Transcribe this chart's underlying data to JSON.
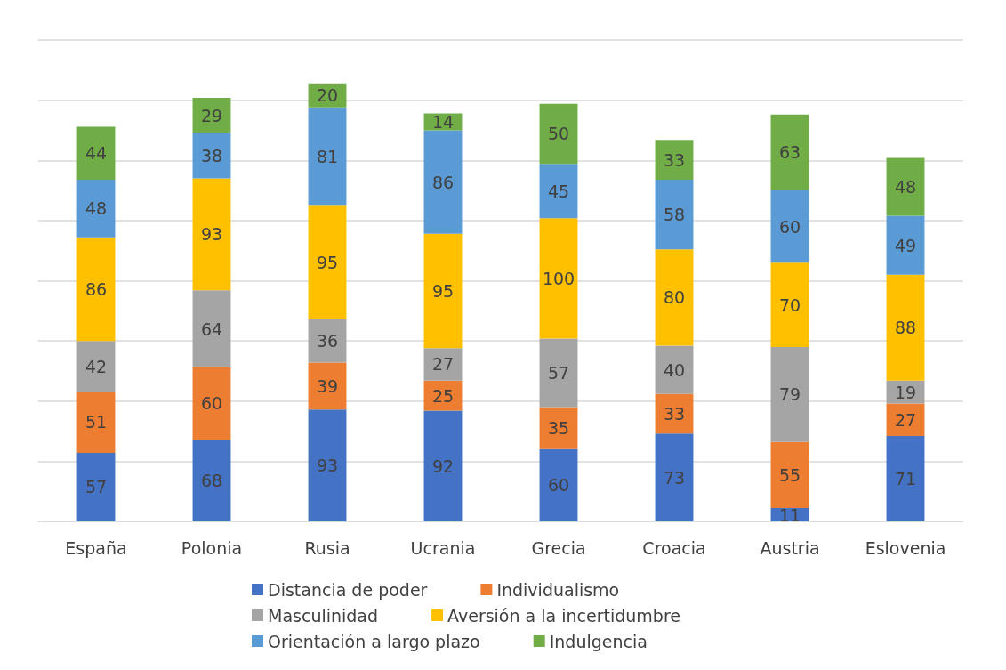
{
  "chart_data": {
    "type": "bar",
    "stacked": true,
    "data_labels": true,
    "grid": "y",
    "legend": "bottom",
    "tick_labels": "x",
    "categories": [
      "España",
      "Polonia",
      "Rusia",
      "Ucrania",
      "Grecia",
      "Croacia",
      "Austria",
      "Eslovenia"
    ],
    "ylim": [
      0,
      400
    ],
    "yticks": [
      {
        "value": 0,
        "label": null
      },
      {
        "value": 50,
        "label": null
      },
      {
        "value": 100,
        "label": null
      },
      {
        "value": 150,
        "label": null
      },
      {
        "value": 200,
        "label": null
      },
      {
        "value": 250,
        "label": null
      },
      {
        "value": 300,
        "label": null
      },
      {
        "value": 350,
        "label": null
      },
      {
        "value": 400,
        "label": null
      }
    ],
    "series": [
      {
        "name": "Distancia de poder",
        "color": "#4472c4",
        "values": [
          57,
          68,
          93,
          92,
          60,
          73,
          11,
          71
        ]
      },
      {
        "name": "Individualismo",
        "color": "#ed7d31",
        "values": [
          51,
          60,
          39,
          25,
          35,
          33,
          55,
          27
        ]
      },
      {
        "name": "Masculinidad",
        "color": "#a5a5a5",
        "values": [
          42,
          64,
          36,
          27,
          57,
          40,
          79,
          19
        ]
      },
      {
        "name": "Aversión a la incertidumbre",
        "color": "#ffc000",
        "values": [
          86,
          93,
          95,
          95,
          100,
          80,
          70,
          88
        ]
      },
      {
        "name": "Orientación a largo plazo",
        "color": "#5b9bd5",
        "values": [
          48,
          38,
          81,
          86,
          45,
          58,
          60,
          49
        ]
      },
      {
        "name": "Indulgencia",
        "color": "#70ad47",
        "values": [
          44,
          29,
          20,
          14,
          50,
          33,
          63,
          48
        ]
      }
    ]
  }
}
